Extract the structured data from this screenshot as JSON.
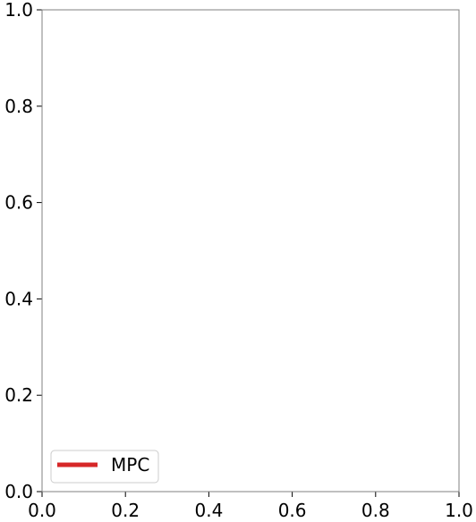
{
  "chart_data": {
    "type": "line",
    "title": "",
    "xlabel": "",
    "ylabel": "",
    "xlim": [
      0,
      1
    ],
    "ylim": [
      0,
      1
    ],
    "xticks": [
      "0.0",
      "0.2",
      "0.4",
      "0.6",
      "0.8",
      "1.0"
    ],
    "yticks": [
      "0.0",
      "0.2",
      "0.4",
      "0.6",
      "0.8",
      "1.0"
    ],
    "grid": false,
    "legend_placement": "lower-left",
    "series": [
      {
        "name": "MPC",
        "color": "#d62728",
        "x": [],
        "y": []
      }
    ]
  }
}
